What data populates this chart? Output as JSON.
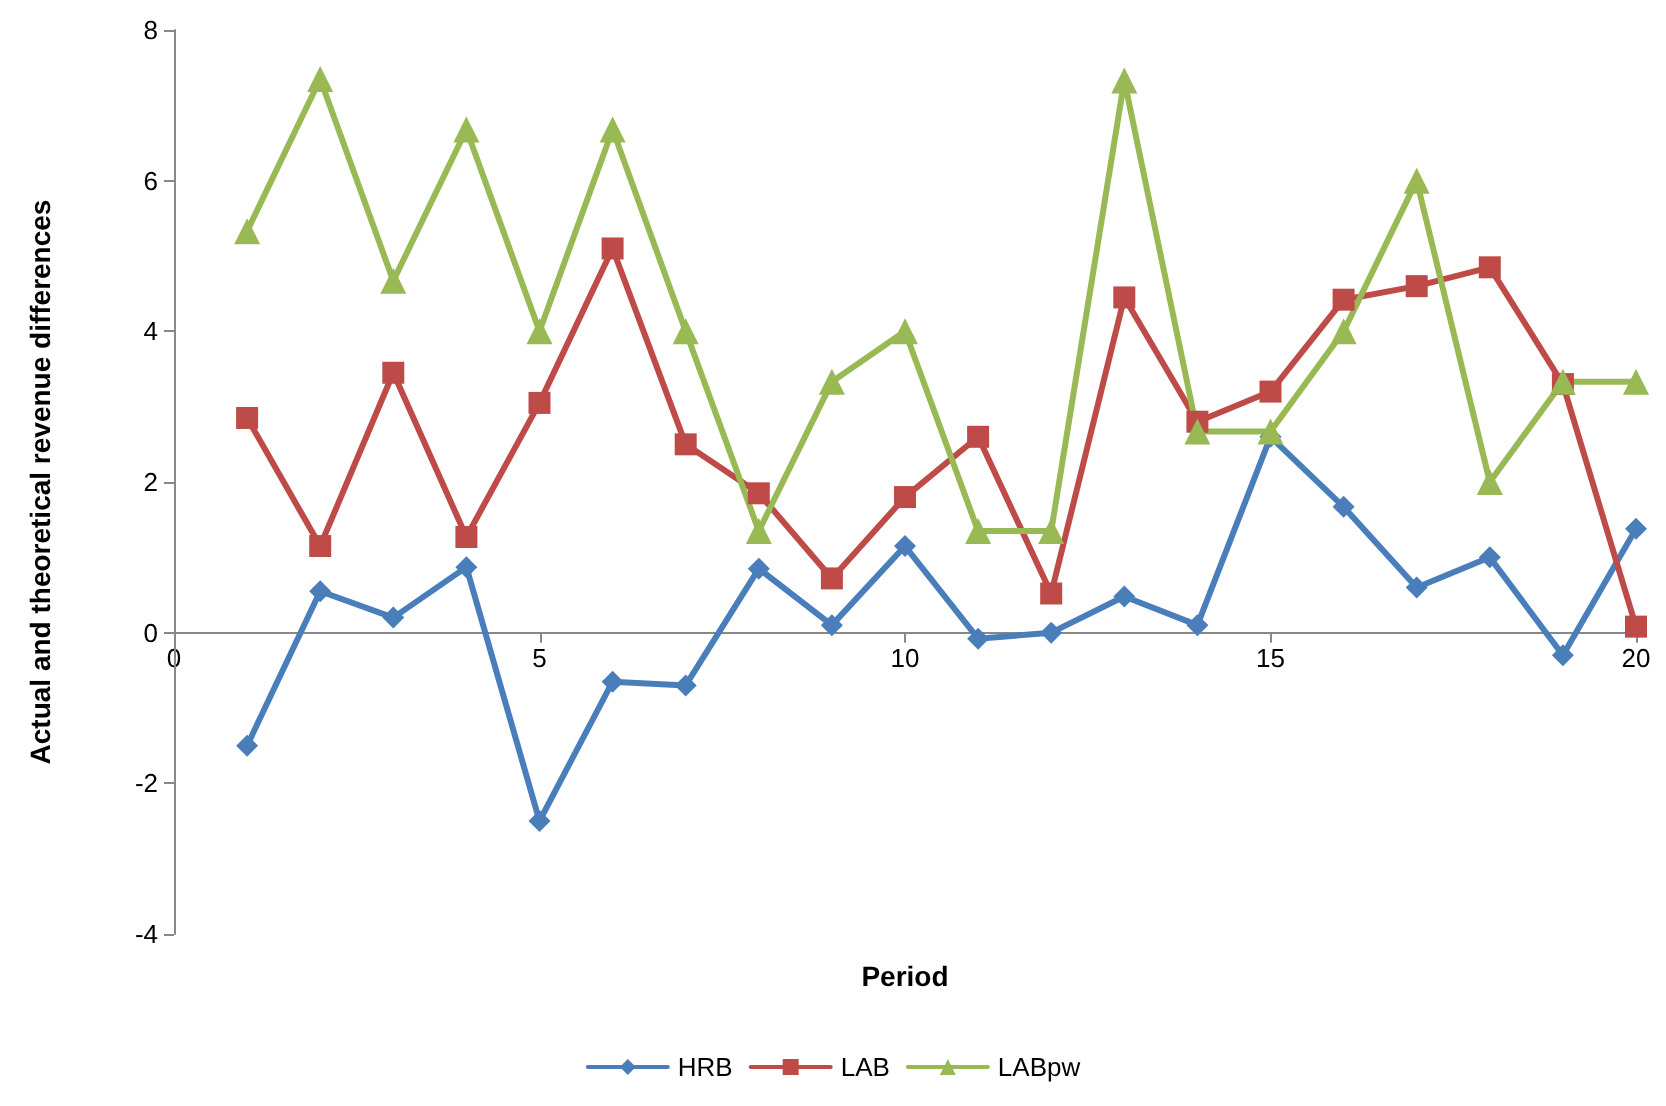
{
  "chart_data": {
    "type": "line",
    "xlabel": "Period",
    "ylabel": "Actual and theoretical revenue differences",
    "x": [
      1,
      2,
      3,
      4,
      5,
      6,
      7,
      8,
      9,
      10,
      11,
      12,
      13,
      14,
      15,
      16,
      17,
      18,
      19,
      20
    ],
    "series": [
      {
        "name": "HRB",
        "color": "#4a7ebb",
        "marker": "diamond",
        "values": [
          -1.5,
          0.55,
          0.2,
          0.87,
          -2.5,
          -0.65,
          -0.7,
          0.85,
          0.1,
          1.15,
          -0.08,
          0,
          0.48,
          0.1,
          2.6,
          1.67,
          0.6,
          1.0,
          -0.3,
          1.38
        ]
      },
      {
        "name": "LAB",
        "color": "#be4b48",
        "marker": "square",
        "values": [
          2.85,
          1.15,
          3.45,
          1.27,
          3.05,
          5.1,
          2.5,
          1.85,
          0.72,
          1.8,
          2.6,
          0.52,
          4.45,
          2.8,
          3.2,
          4.42,
          4.6,
          4.85,
          3.3,
          0.08
        ]
      },
      {
        "name": "LABpw",
        "color": "#98b954",
        "marker": "triangle",
        "values": [
          5.33,
          7.35,
          4.67,
          6.68,
          4.0,
          6.68,
          4.0,
          1.35,
          3.33,
          4.0,
          1.35,
          1.35,
          7.33,
          2.67,
          2.67,
          4.0,
          6.0,
          2.0,
          3.33,
          3.33
        ]
      }
    ],
    "xlim": [
      0,
      20
    ],
    "xticks": [
      0,
      5,
      10,
      15,
      20
    ],
    "ylim": [
      -4,
      8
    ],
    "yticks": [
      -4,
      -2,
      0,
      2,
      4,
      6,
      8
    ],
    "grid": false,
    "legend": "bottom",
    "line_style": "solid"
  }
}
